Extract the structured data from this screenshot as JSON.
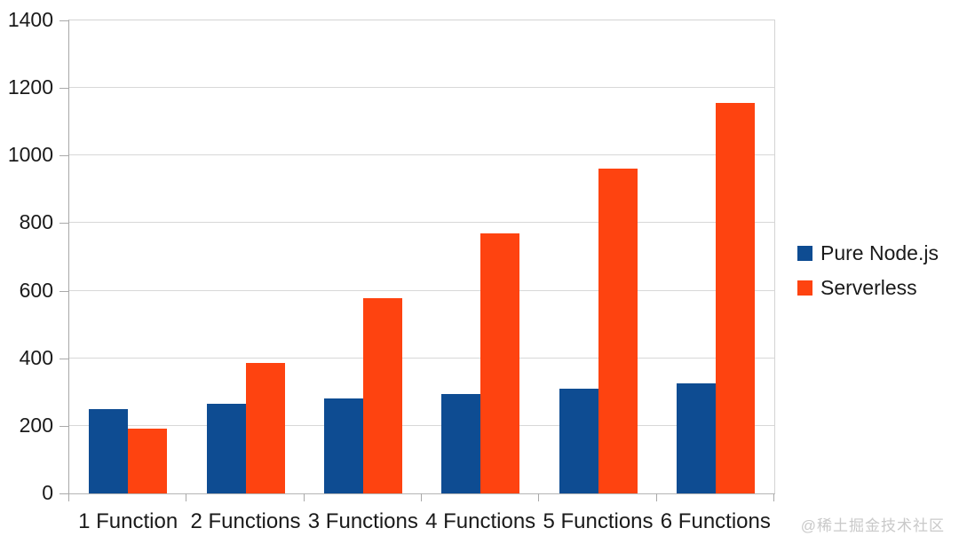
{
  "chart_data": {
    "type": "bar",
    "title": "",
    "xlabel": "",
    "ylabel": "",
    "categories": [
      "1 Function",
      "2 Functions",
      "3 Functions",
      "4 Functions",
      "5 Functions",
      "6 Functions"
    ],
    "series": [
      {
        "name": "Pure Node.js",
        "color": "#0e4c92",
        "values": [
          250,
          265,
          280,
          295,
          310,
          325
        ]
      },
      {
        "name": "Serverless",
        "color": "#fe4310",
        "values": [
          192,
          385,
          578,
          770,
          962,
          1155
        ]
      }
    ],
    "ylim": [
      0,
      1400
    ],
    "ytick_step": 200,
    "ytick_labels": [
      "0",
      "200",
      "400",
      "600",
      "800",
      "1000",
      "1200",
      "1400"
    ],
    "grid": true,
    "legend_position": "right"
  },
  "legend": {
    "items": [
      {
        "label": "Pure Node.js",
        "color": "#0e4c92"
      },
      {
        "label": "Serverless",
        "color": "#fe4310"
      }
    ]
  },
  "watermark": "@稀土掘金技术社区",
  "colors": {
    "background": "#ffffff",
    "gridline": "#d8d8d8",
    "axis": "#a9a9a9",
    "text": "#1a1a1a",
    "watermark": "#c9c9c9"
  }
}
